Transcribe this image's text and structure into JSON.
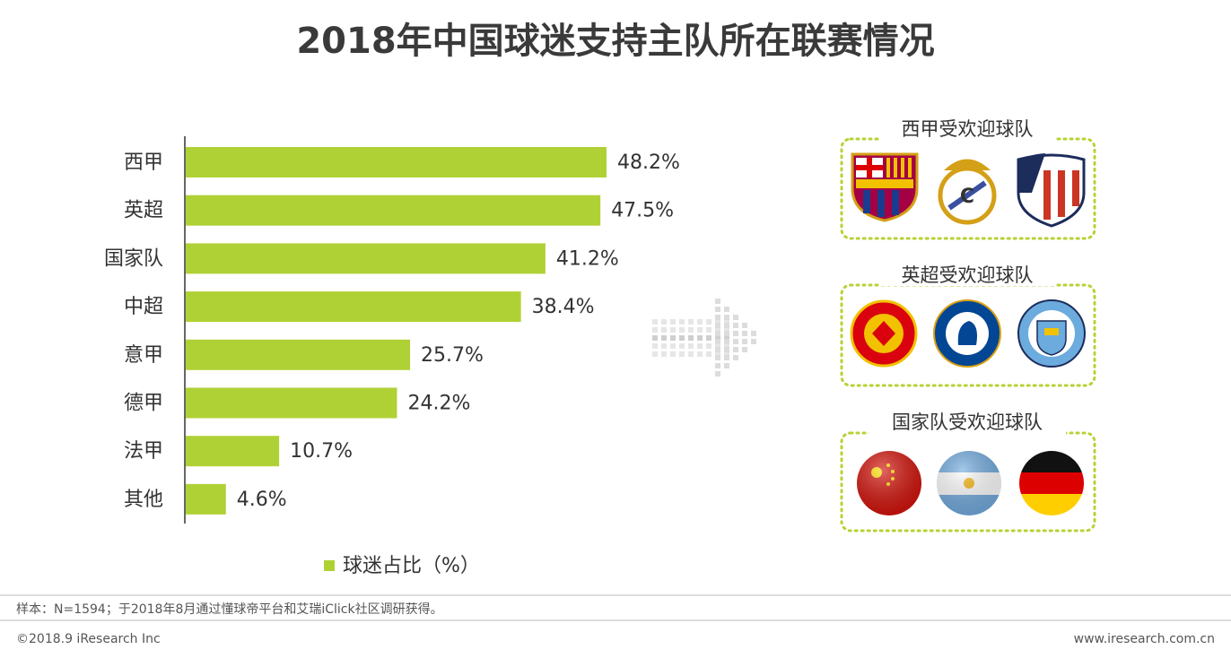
{
  "title": "2018年中国球迷支持主队所在联赛情况",
  "chart_data": {
    "type": "bar",
    "orientation": "horizontal",
    "categories": [
      "西甲",
      "英超",
      "国家队",
      "中超",
      "意甲",
      "德甲",
      "法甲",
      "其他"
    ],
    "series": [
      {
        "name": "球迷占比（%）",
        "color": "#b0d135",
        "values": [
          48.2,
          47.5,
          41.2,
          38.4,
          25.7,
          24.2,
          10.7,
          4.6
        ],
        "value_labels": [
          "48.2%",
          "47.5%",
          "41.2%",
          "38.4%",
          "25.7%",
          "24.2%",
          "10.7%",
          "4.6%"
        ]
      }
    ]
  },
  "panels": [
    {
      "title": "西甲受欢迎球队"
    },
    {
      "title": "英超受欢迎球队"
    },
    {
      "title": "国家队受欢迎球队"
    }
  ],
  "footnote": "样本：N=1594；于2018年8月通过懂球帝平台和艾瑞iClick社区调研获得。",
  "copyright": "©2018.9 iResearch Inc",
  "website": "www.iresearch.com.cn"
}
